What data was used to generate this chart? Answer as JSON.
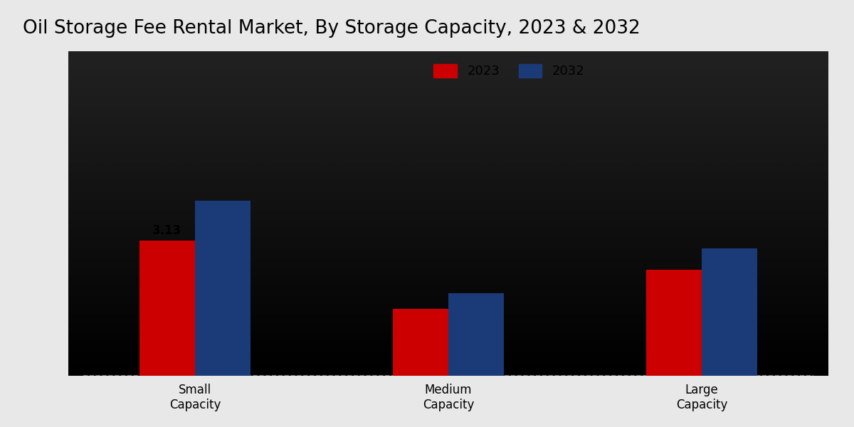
{
  "title": "Oil Storage Fee Rental Market, By Storage Capacity, 2023 & 2032",
  "categories": [
    "Small\nCapacity",
    "Medium\nCapacity",
    "Large\nCapacity"
  ],
  "values_2023": [
    3.13,
    1.55,
    2.45
  ],
  "values_2032": [
    4.05,
    1.9,
    2.95
  ],
  "bar_color_2023": "#cc0000",
  "bar_color_2032": "#1b3a78",
  "background_color": "#e8e8e8",
  "annotation_2023": "3.13",
  "bar_width": 0.22,
  "legend_labels": [
    "2023",
    "2032"
  ],
  "title_fontsize": 19,
  "ylabel_fontsize": 12,
  "tick_fontsize": 12,
  "ylim_max": 7.5
}
